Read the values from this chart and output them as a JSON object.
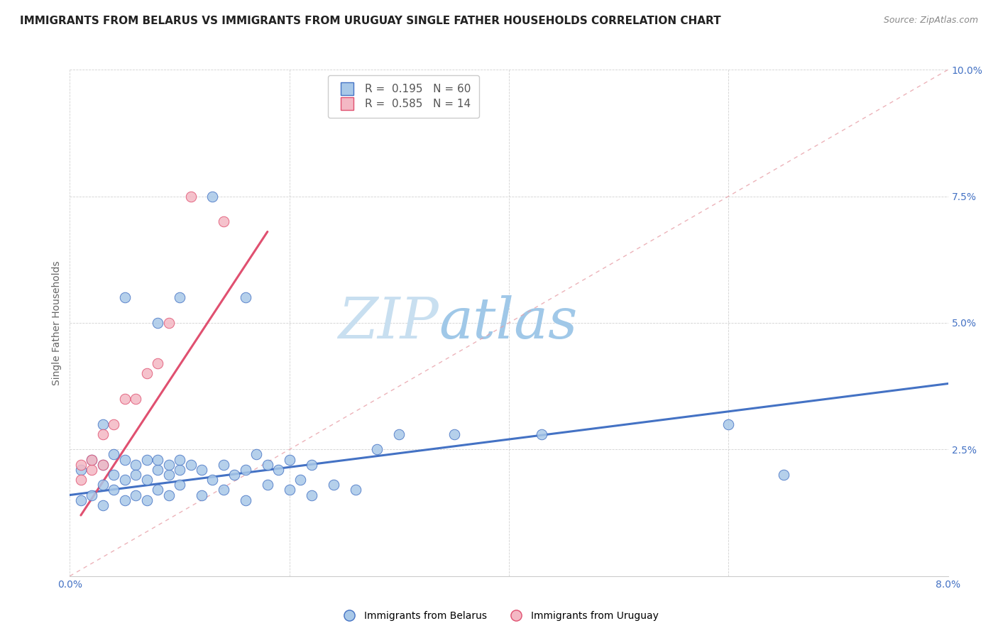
{
  "title": "IMMIGRANTS FROM BELARUS VS IMMIGRANTS FROM URUGUAY SINGLE FATHER HOUSEHOLDS CORRELATION CHART",
  "source_text": "Source: ZipAtlas.com",
  "ylabel": "Single Father Households",
  "xlim": [
    0.0,
    0.08
  ],
  "ylim": [
    0.0,
    0.1
  ],
  "xticks": [
    0.0,
    0.02,
    0.04,
    0.06,
    0.08
  ],
  "yticks": [
    0.0,
    0.025,
    0.05,
    0.075,
    0.1
  ],
  "ytick_labels": [
    "",
    "2.5%",
    "5.0%",
    "7.5%",
    "10.0%"
  ],
  "xtick_labels": [
    "0.0%",
    "",
    "",
    "",
    "8.0%"
  ],
  "legend_labels": [
    "Immigrants from Belarus",
    "Immigrants from Uruguay"
  ],
  "legend_r_belarus": "R =  0.195",
  "legend_n_belarus": "N = 60",
  "legend_r_uruguay": "R =  0.585",
  "legend_n_uruguay": "N = 14",
  "color_belarus": "#A8C8E8",
  "color_uruguay": "#F4B8C4",
  "color_belarus_line": "#4472C4",
  "color_uruguay_line": "#E05070",
  "color_diagonal": "#E8A0A8",
  "watermark_zip": "ZIP",
  "watermark_atlas": "atlas",
  "watermark_color_zip": "#C8DFF0",
  "watermark_color_atlas": "#A0C8E8",
  "title_fontsize": 11,
  "axis_fontsize": 10,
  "tick_fontsize": 10,
  "legend_fontsize": 11,
  "belarus_x": [
    0.001,
    0.002,
    0.003,
    0.003,
    0.004,
    0.004,
    0.005,
    0.005,
    0.006,
    0.006,
    0.007,
    0.007,
    0.008,
    0.008,
    0.009,
    0.009,
    0.01,
    0.01,
    0.011,
    0.012,
    0.013,
    0.014,
    0.015,
    0.016,
    0.017,
    0.018,
    0.019,
    0.02,
    0.021,
    0.022,
    0.001,
    0.002,
    0.003,
    0.004,
    0.005,
    0.006,
    0.007,
    0.008,
    0.009,
    0.01,
    0.012,
    0.014,
    0.016,
    0.018,
    0.02,
    0.022,
    0.024,
    0.026,
    0.028,
    0.03,
    0.003,
    0.005,
    0.008,
    0.01,
    0.013,
    0.016,
    0.035,
    0.043,
    0.06,
    0.065
  ],
  "belarus_y": [
    0.021,
    0.023,
    0.022,
    0.018,
    0.02,
    0.024,
    0.019,
    0.023,
    0.022,
    0.02,
    0.019,
    0.023,
    0.021,
    0.023,
    0.02,
    0.022,
    0.021,
    0.023,
    0.022,
    0.021,
    0.019,
    0.022,
    0.02,
    0.021,
    0.024,
    0.022,
    0.021,
    0.023,
    0.019,
    0.022,
    0.015,
    0.016,
    0.014,
    0.017,
    0.015,
    0.016,
    0.015,
    0.017,
    0.016,
    0.018,
    0.016,
    0.017,
    0.015,
    0.018,
    0.017,
    0.016,
    0.018,
    0.017,
    0.025,
    0.028,
    0.03,
    0.055,
    0.05,
    0.055,
    0.075,
    0.055,
    0.028,
    0.028,
    0.03,
    0.02
  ],
  "uruguay_x": [
    0.001,
    0.001,
    0.002,
    0.002,
    0.003,
    0.003,
    0.004,
    0.005,
    0.006,
    0.007,
    0.008,
    0.009,
    0.011,
    0.014
  ],
  "uruguay_y": [
    0.019,
    0.022,
    0.021,
    0.023,
    0.022,
    0.028,
    0.03,
    0.035,
    0.035,
    0.04,
    0.042,
    0.05,
    0.075,
    0.07
  ],
  "belarus_trend_x": [
    0.0,
    0.08
  ],
  "belarus_trend_y": [
    0.016,
    0.038
  ],
  "uruguay_trend_x": [
    0.001,
    0.018
  ],
  "uruguay_trend_y": [
    0.012,
    0.068
  ]
}
